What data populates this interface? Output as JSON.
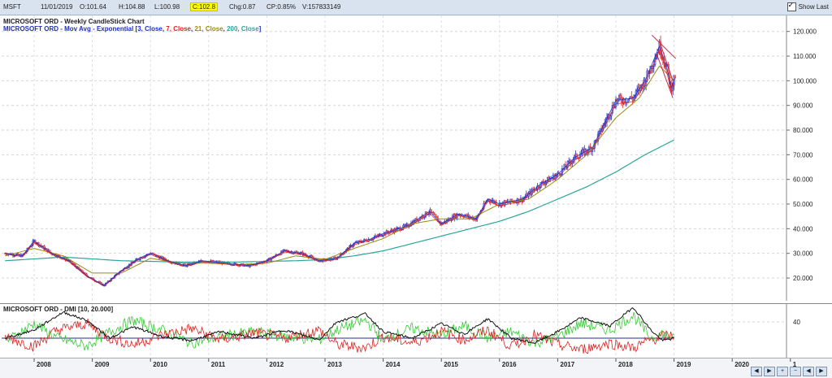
{
  "header": {
    "symbol": "MSFT",
    "date": "11/01/2019",
    "open": "O:101.64",
    "high": "H:104.88",
    "low": "L:100.98",
    "close": "C:102.8",
    "chg": "Chg:0.87",
    "cp": "CP:0.85%",
    "volume": "V:157833149",
    "show_last": "Show Last"
  },
  "titles": {
    "main": "MICROSOFT ORD - Weekly CandleStick Chart",
    "ema_prefix": "MICROSOFT ORD - Mov Avg - Exponential [",
    "ema_3": "3, Close",
    "ema_7": "7, Close",
    "ema_21": "21, Close",
    "ema_200": "200, Close",
    "ema_suffix": "]",
    "dmi": "MICROSOFT ORD - DMI [10, 20.000]"
  },
  "colors": {
    "ema3": "#1f2fbf",
    "ema7": "#e02020",
    "ema21": "#9a8a10",
    "ema200": "#2aa59a",
    "trend": "#c8284a",
    "di_plus": "#33cc33",
    "di_minus": "#e02020",
    "adx": "#111111",
    "level": "#2b2b8c"
  },
  "chart_data": [
    {
      "type": "candlestick",
      "title": "MICROSOFT ORD - Weekly CandleStick Chart",
      "ylim": [
        10,
        125
      ],
      "y_ticks": [
        "20.000",
        "30.000",
        "40.000",
        "50.000",
        "60.000",
        "70.000",
        "80.000",
        "90.000",
        "100.000",
        "110.000",
        "120.000"
      ],
      "x_ticks": [
        "2008",
        "2009",
        "2010",
        "2011",
        "2012",
        "2013",
        "2014",
        "2015",
        "2016",
        "2017",
        "2018",
        "2019",
        "2020",
        "1"
      ],
      "price": {
        "x": [
          2007.5,
          2007.8,
          2008.0,
          2008.3,
          2008.6,
          2008.9,
          2009.2,
          2009.5,
          2009.8,
          2010.0,
          2010.3,
          2010.6,
          2010.9,
          2011.3,
          2011.7,
          2012.0,
          2012.3,
          2012.6,
          2012.9,
          2013.2,
          2013.5,
          2013.8,
          2014.0,
          2014.4,
          2014.8,
          2015.0,
          2015.3,
          2015.6,
          2015.8,
          2016.0,
          2016.4,
          2016.7,
          2017.0,
          2017.3,
          2017.6,
          2018.0,
          2018.3,
          2018.5,
          2018.75,
          2018.88,
          2018.95,
          2019.03
        ],
        "values": [
          30,
          29,
          35,
          30,
          27,
          21,
          17,
          23,
          28,
          30,
          27,
          25,
          27,
          26,
          25,
          27,
          31,
          30,
          27,
          28,
          34,
          36,
          38,
          41,
          47,
          42,
          46,
          44,
          52,
          50,
          52,
          58,
          62,
          69,
          73,
          92,
          93,
          100,
          114,
          105,
          97,
          103
        ]
      },
      "series": [
        {
          "name": "200, Close",
          "x": [
            2007.5,
            2008.5,
            2009.5,
            2010.5,
            2011.5,
            2012.5,
            2013.0,
            2013.5,
            2014.0,
            2014.5,
            2015.0,
            2015.5,
            2016.0,
            2016.5,
            2017.0,
            2017.5,
            2018.0,
            2018.5,
            2019.0
          ],
          "values": [
            27,
            28.5,
            27,
            26.5,
            26.5,
            27,
            27.5,
            29,
            31,
            34,
            37,
            40,
            43,
            47,
            52,
            57,
            63,
            70,
            76
          ]
        },
        {
          "name": "21, Close",
          "x": [
            2007.5,
            2008.0,
            2008.5,
            2009.0,
            2009.5,
            2010.0,
            2010.5,
            2011.0,
            2011.5,
            2012.0,
            2012.5,
            2013.0,
            2013.5,
            2014.0,
            2014.5,
            2015.0,
            2015.5,
            2016.0,
            2016.5,
            2017.0,
            2017.5,
            2018.0,
            2018.4,
            2018.75,
            2019.0
          ],
          "values": [
            29,
            32,
            29,
            22,
            22,
            28,
            26,
            26,
            25.5,
            26,
            29,
            27.5,
            32,
            36,
            42,
            44,
            44,
            50,
            52,
            60,
            70,
            85,
            93,
            106,
            100
          ]
        }
      ],
      "trendlines": "downtrend from 2018.65 to 2019.03"
    },
    {
      "type": "line",
      "title": "MICROSOFT ORD - DMI [10, 20.000]",
      "ylim": [
        0,
        60
      ],
      "y_ticks": [
        "40"
      ],
      "level": 20,
      "series": [
        {
          "name": "ADX",
          "x": [
            2007.5,
            2008.0,
            2008.5,
            2008.9,
            2009.3,
            2009.7,
            2010.2,
            2010.7,
            2011.2,
            2011.8,
            2012.3,
            2012.9,
            2013.2,
            2013.7,
            2014.0,
            2014.5,
            2015.0,
            2015.4,
            2015.8,
            2016.2,
            2016.6,
            2017.0,
            2017.4,
            2017.9,
            2018.3,
            2018.6,
            2018.8,
            2019.0
          ],
          "values": [
            20,
            30,
            52,
            42,
            20,
            34,
            22,
            17,
            28,
            20,
            30,
            18,
            40,
            50,
            28,
            20,
            38,
            25,
            44,
            20,
            14,
            28,
            45,
            35,
            58,
            30,
            17,
            20
          ]
        },
        {
          "name": "+DI",
          "x": [
            2007.5,
            2008.0,
            2008.4,
            2008.9,
            2009.3,
            2009.7,
            2010.2,
            2010.7,
            2011.2,
            2011.8,
            2012.3,
            2012.9,
            2013.2,
            2013.7,
            2014.0,
            2014.5,
            2015.0,
            2015.4,
            2015.8,
            2016.2,
            2016.6,
            2017.0,
            2017.4,
            2017.9,
            2018.3,
            2018.6,
            2018.8,
            2019.0
          ],
          "values": [
            15,
            38,
            20,
            10,
            28,
            42,
            30,
            14,
            22,
            28,
            22,
            18,
            30,
            42,
            18,
            32,
            24,
            35,
            20,
            28,
            14,
            22,
            38,
            30,
            48,
            20,
            26,
            18
          ]
        },
        {
          "name": "-DI",
          "x": [
            2007.5,
            2008.0,
            2008.4,
            2008.9,
            2009.3,
            2009.7,
            2010.2,
            2010.7,
            2011.2,
            2011.8,
            2012.3,
            2012.9,
            2013.2,
            2013.7,
            2014.0,
            2014.5,
            2015.0,
            2015.4,
            2015.8,
            2016.2,
            2016.6,
            2017.0,
            2017.4,
            2017.9,
            2018.3,
            2018.6,
            2018.8,
            2019.0
          ],
          "values": [
            22,
            10,
            30,
            38,
            20,
            12,
            24,
            32,
            18,
            26,
            20,
            30,
            12,
            8,
            22,
            14,
            28,
            18,
            30,
            10,
            24,
            12,
            6,
            14,
            8,
            18,
            22,
            24
          ]
        }
      ]
    }
  ]
}
